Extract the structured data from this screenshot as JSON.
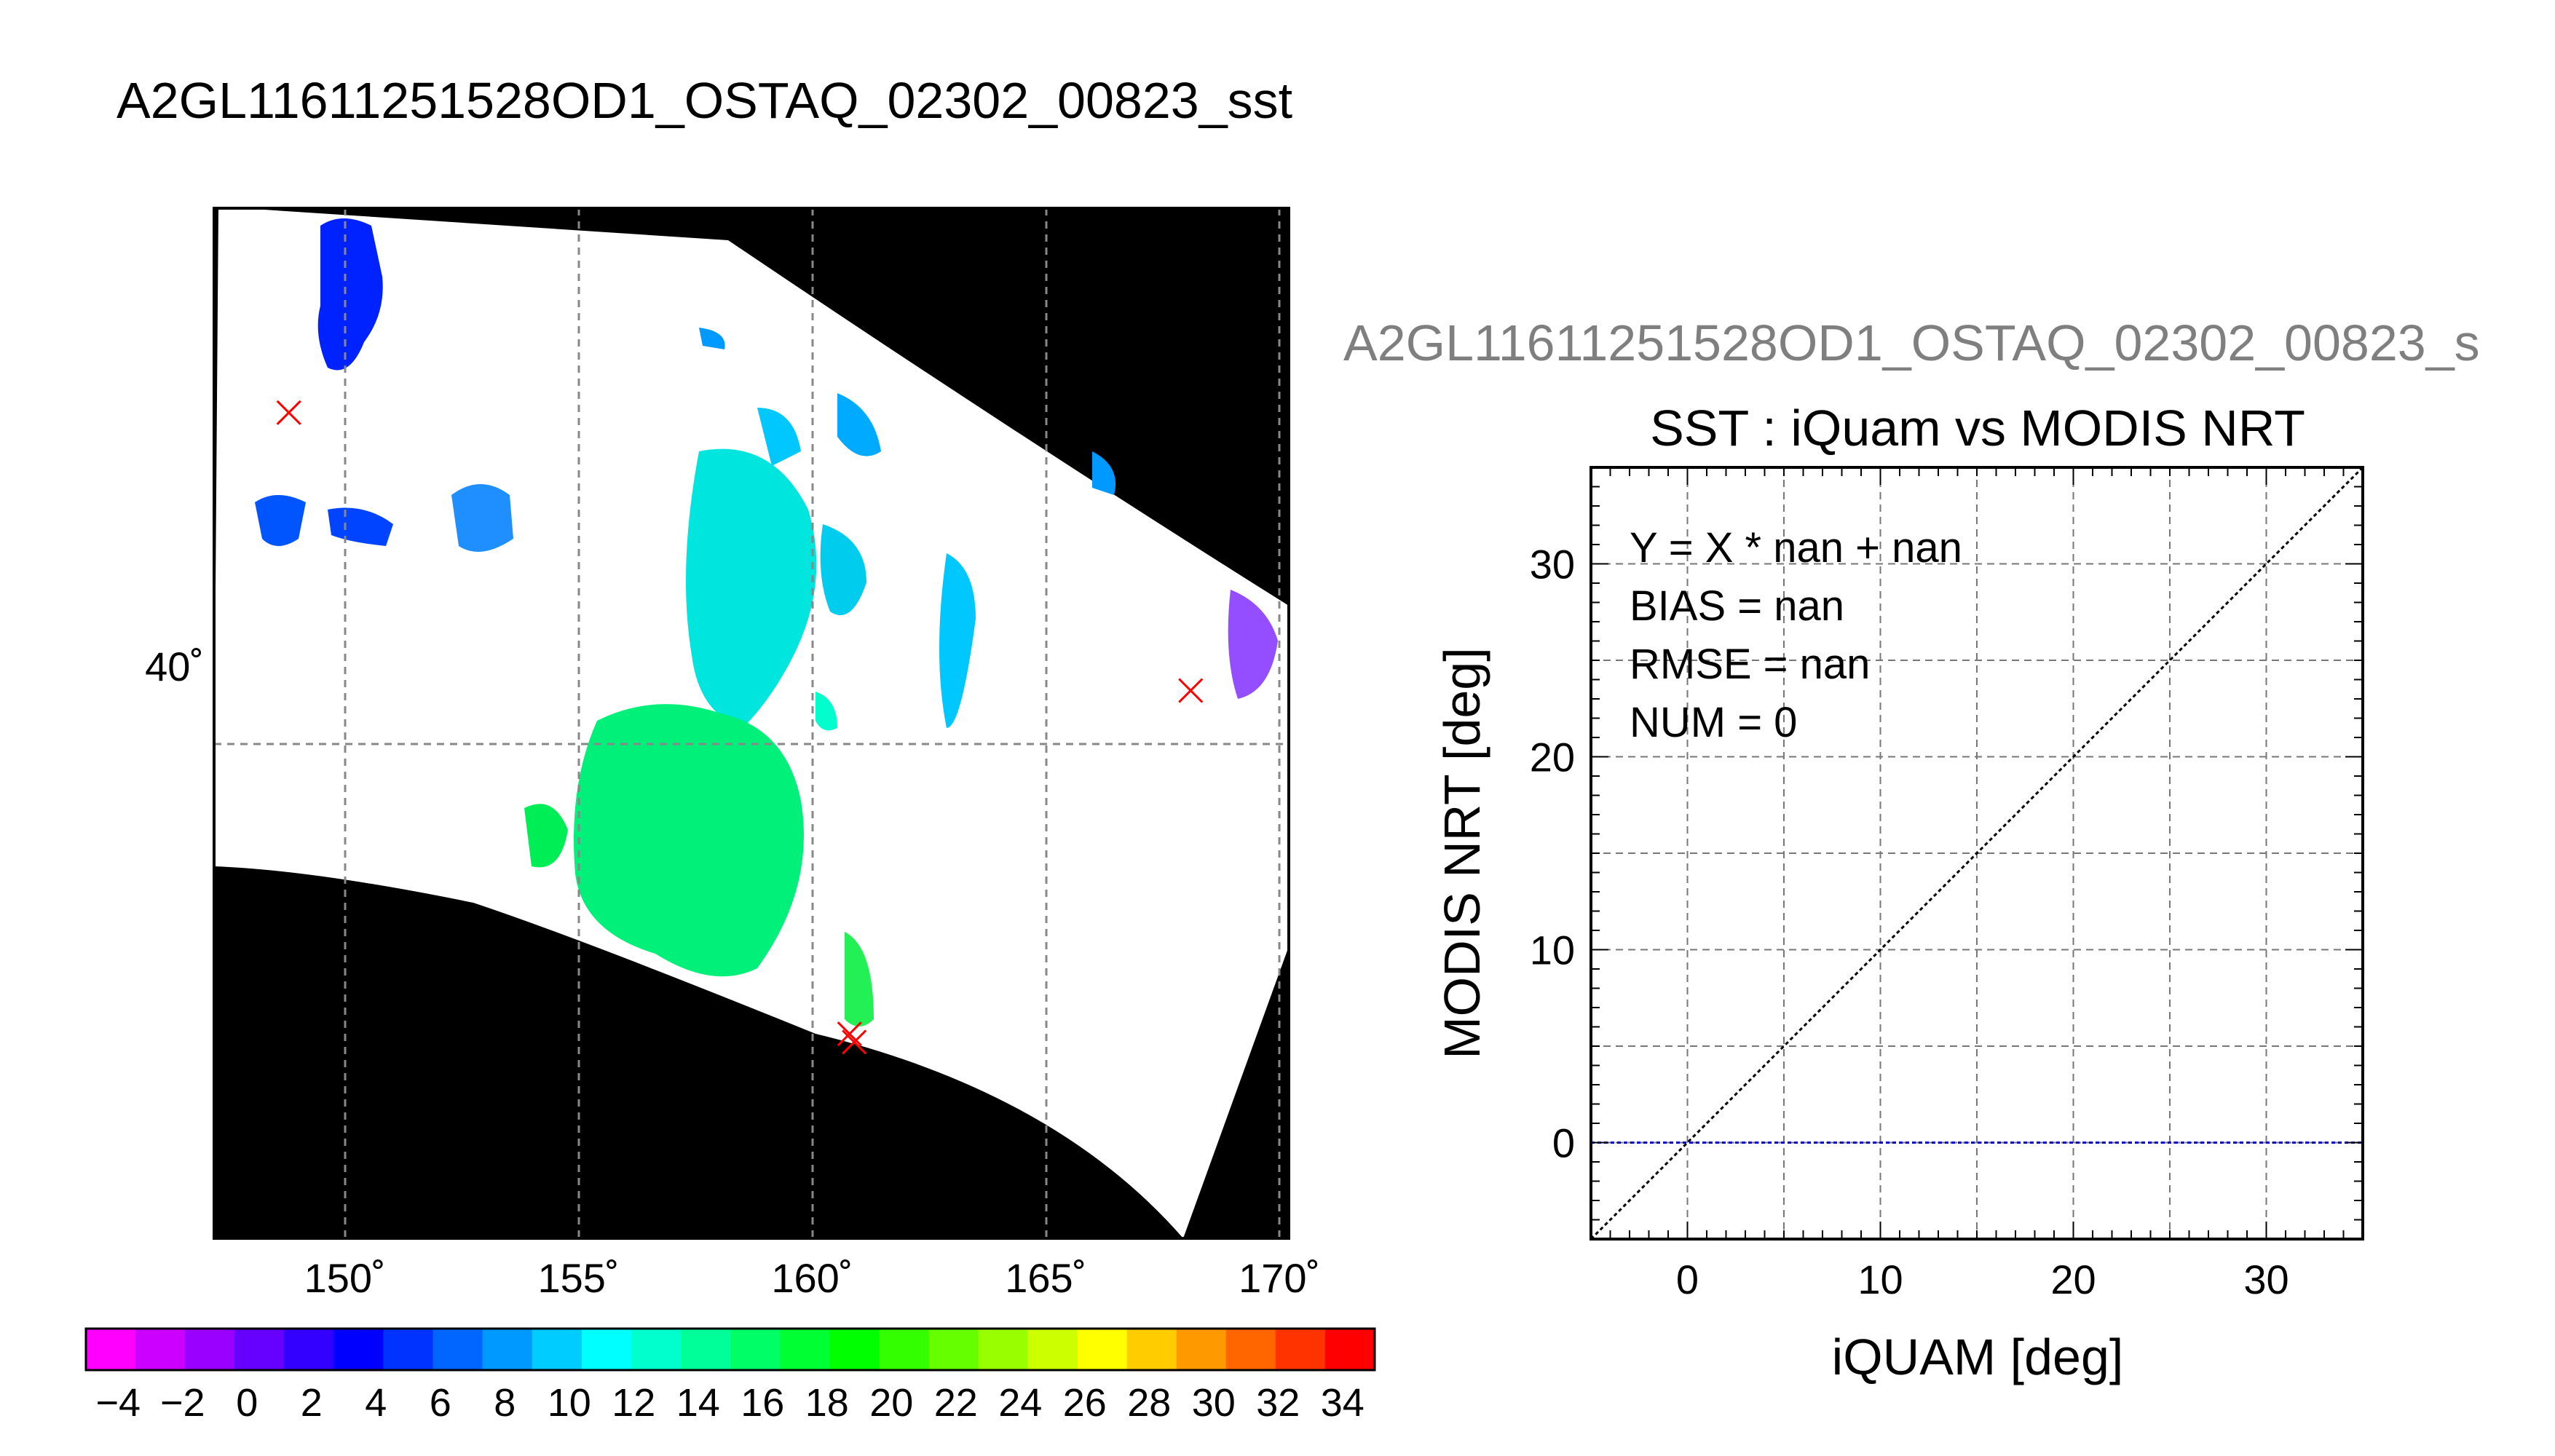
{
  "page": {
    "main_title": "A2GL11611251528OD1_OSTAQ_02302_00823_sst",
    "sub_title": "A2GL11611251528OD1_OSTAQ_02302_00823_s"
  },
  "colors": {
    "background": "#ffffff",
    "map_fill": "#000000",
    "marker": "#ff0000",
    "zero_line": "#0000cc",
    "grid": "#666666",
    "gray_title": "#7f7f7f"
  },
  "chart_data": [
    {
      "type": "heatmap",
      "title": "",
      "xlabel": "",
      "ylabel": "",
      "x_ticks": [
        150,
        155,
        160,
        165,
        170
      ],
      "x_tick_labels": [
        "150˚",
        "155˚",
        "160˚",
        "165˚",
        "170˚"
      ],
      "y_ticks": [
        40
      ],
      "y_tick_labels": [
        "40˚"
      ],
      "xlim": [
        147.2,
        170.2
      ],
      "ylim": [
        33.0,
        45.6
      ],
      "grid": true,
      "markers": [
        {
          "lon": 148.8,
          "lat": 43.1
        },
        {
          "lon": 160.9,
          "lat": 35.4
        },
        {
          "lon": 160.8,
          "lat": 35.5
        },
        {
          "lon": 168.1,
          "lat": 39.7
        }
      ],
      "colorbar": {
        "ticks": [
          -4,
          -2,
          0,
          2,
          4,
          6,
          8,
          10,
          12,
          14,
          16,
          18,
          20,
          22,
          24,
          26,
          28,
          30,
          32,
          34
        ],
        "tick_labels": [
          "−4",
          "−2",
          "0",
          "2",
          "4",
          "6",
          "8",
          "10",
          "12",
          "14",
          "16",
          "18",
          "20",
          "22",
          "24",
          "26",
          "28",
          "30",
          "32",
          "34"
        ],
        "range": [
          -5,
          35
        ],
        "colors": [
          "#ff00ff",
          "#cc00ff",
          "#9900ff",
          "#6600ff",
          "#3300ff",
          "#0000ff",
          "#0033ff",
          "#0066ff",
          "#0099ff",
          "#00ccff",
          "#00ffff",
          "#00ffcc",
          "#00ff99",
          "#00ff66",
          "#00ff33",
          "#00ff00",
          "#33ff00",
          "#66ff00",
          "#99ff00",
          "#ccff00",
          "#ffff00",
          "#ffcc00",
          "#ff9900",
          "#ff6600",
          "#ff3300",
          "#ff0000"
        ]
      }
    },
    {
      "type": "scatter",
      "title": "SST : iQuam vs MODIS NRT",
      "xlabel": "iQUAM [deg]",
      "ylabel": "MODIS NRT [deg]",
      "xlim": [
        -5,
        35
      ],
      "ylim": [
        -5,
        35
      ],
      "x_ticks": [
        0,
        10,
        20,
        30
      ],
      "y_ticks": [
        0,
        10,
        20,
        30
      ],
      "grid": true,
      "annotations": [
        "Y = X * nan + nan",
        "BIAS = nan",
        "RMSE = nan",
        "NUM = 0"
      ],
      "one_to_one_line": true,
      "fit_line_y": 0,
      "points": []
    }
  ]
}
